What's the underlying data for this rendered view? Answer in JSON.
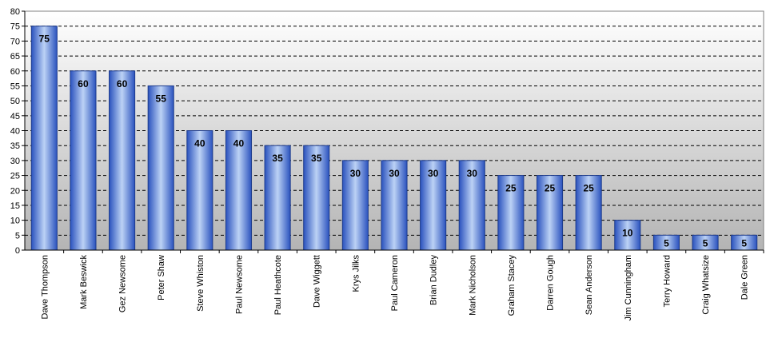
{
  "chart_data": {
    "type": "bar",
    "title": "",
    "xlabel": "",
    "ylabel": "",
    "categories": [
      "Dave Thompson",
      "Mark Beswick",
      "Gez Newsome",
      "Peter Shaw",
      "Steve Whiston",
      "Paul Newsome",
      "Paul Heathcote",
      "Dave Wiggett",
      "Krys Jilks",
      "Paul Cameron",
      "Brian Dudley",
      "Mark Nicholson",
      "Graham Stacey",
      "Darren Gough",
      "Sean Anderson",
      "Jim Cunningham",
      "Terry Howard",
      "Craig Whatsize",
      "Dale Green"
    ],
    "values": [
      75,
      60,
      60,
      55,
      40,
      40,
      35,
      35,
      30,
      30,
      30,
      30,
      25,
      25,
      25,
      10,
      5,
      5,
      5
    ],
    "ylim": [
      0,
      80
    ],
    "y_ticks": [
      0,
      5,
      10,
      15,
      20,
      25,
      30,
      35,
      40,
      45,
      50,
      55,
      60,
      65,
      70,
      75,
      80
    ],
    "grid": true,
    "grid_style": "dashed",
    "data_labels": true,
    "legend": "none",
    "colors": {
      "bar_edge": "#1e3c8c",
      "bar_dark": "#2a52be",
      "bar_light": "#bcd2f5",
      "plot_bg_top": "#ffffff",
      "plot_bg_bottom": "#b4b4b4",
      "grid": "#000000",
      "axis": "#000000",
      "text": "#000000"
    }
  }
}
